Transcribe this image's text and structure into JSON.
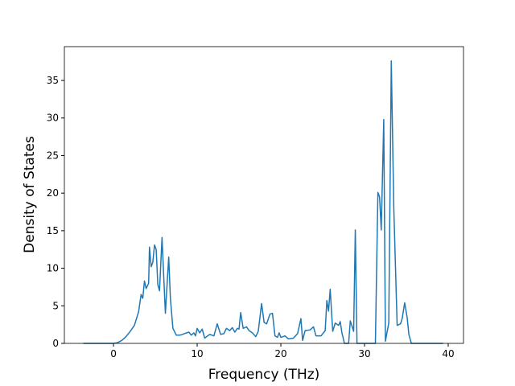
{
  "chart_data": {
    "type": "line",
    "xlabel": "Frequency (THz)",
    "ylabel": "Density of States",
    "xlim": [
      -5.87,
      41.83
    ],
    "ylim": [
      0,
      39.5
    ],
    "xticks": [
      0,
      10,
      20,
      30,
      40
    ],
    "yticks": [
      0,
      5,
      10,
      15,
      20,
      25,
      30,
      35
    ],
    "series": [
      {
        "color": "#1f77b4",
        "x": [
          -3.6,
          0,
          0.5,
          1,
          1.5,
          2,
          2.5,
          3,
          3.3,
          3.5,
          3.7,
          3.9,
          4.2,
          4.3,
          4.5,
          4.7,
          4.9,
          5.1,
          5.3,
          5.5,
          5.8,
          6.0,
          6.2,
          6.6,
          6.8,
          7.1,
          7.5,
          8,
          8.5,
          9,
          9.3,
          9.6,
          9.8,
          10,
          10.3,
          10.6,
          10.9,
          11.5,
          12,
          12.4,
          12.8,
          13.2,
          13.5,
          13.9,
          14.2,
          14.5,
          14.8,
          15,
          15.2,
          15.5,
          15.9,
          16.2,
          16.6,
          17,
          17.3,
          17.7,
          18,
          18.3,
          18.7,
          19,
          19.3,
          19.6,
          19.8,
          20,
          20.5,
          20.9,
          21.5,
          22,
          22.4,
          22.6,
          22.9,
          23.5,
          23.9,
          24.2,
          24.8,
          25.3,
          25.5,
          25.7,
          25.9,
          26.2,
          26.5,
          26.9,
          27.1,
          27.3,
          27.6,
          28.1,
          28.3,
          28.7,
          28.9,
          29.1,
          31.3,
          31.6,
          31.8,
          32.0,
          32.3,
          32.5,
          32.9,
          33.2,
          33.5,
          33.9,
          34.3,
          34.5,
          34.8,
          35.1,
          35.3,
          35.6,
          39.4
        ],
        "values": [
          0,
          0,
          0.1,
          0.4,
          0.9,
          1.6,
          2.4,
          4.2,
          6.5,
          6,
          8.3,
          7.3,
          8,
          12.8,
          10.2,
          10.8,
          13.1,
          12.5,
          7.8,
          7,
          14.1,
          9,
          4,
          11.5,
          6,
          2,
          1.1,
          1.1,
          1.3,
          1.5,
          1.1,
          1.4,
          1.0,
          2.0,
          1.4,
          1.9,
          0.7,
          1.2,
          1.0,
          2.6,
          1.2,
          1.3,
          2.0,
          1.7,
          2.1,
          1.5,
          2.0,
          1.9,
          4.1,
          2.0,
          2.2,
          1.7,
          1.4,
          0.9,
          1.6,
          5.3,
          2.8,
          2.6,
          3.9,
          4.0,
          1.0,
          0.8,
          1.4,
          0.8,
          1.0,
          0.6,
          0.7,
          1.3,
          3.3,
          0.4,
          1.7,
          1.8,
          2.2,
          1.0,
          1.0,
          1.7,
          5.7,
          4.3,
          7.2,
          1.6,
          2.7,
          2.4,
          2.9,
          1.4,
          0,
          0,
          3.0,
          1.6,
          15.1,
          0,
          0,
          20.1,
          19.5,
          15.1,
          29.8,
          0.3,
          2.7,
          37.6,
          18,
          2.4,
          2.6,
          3.3,
          5.4,
          3.4,
          1.2,
          0,
          0
        ]
      }
    ]
  }
}
